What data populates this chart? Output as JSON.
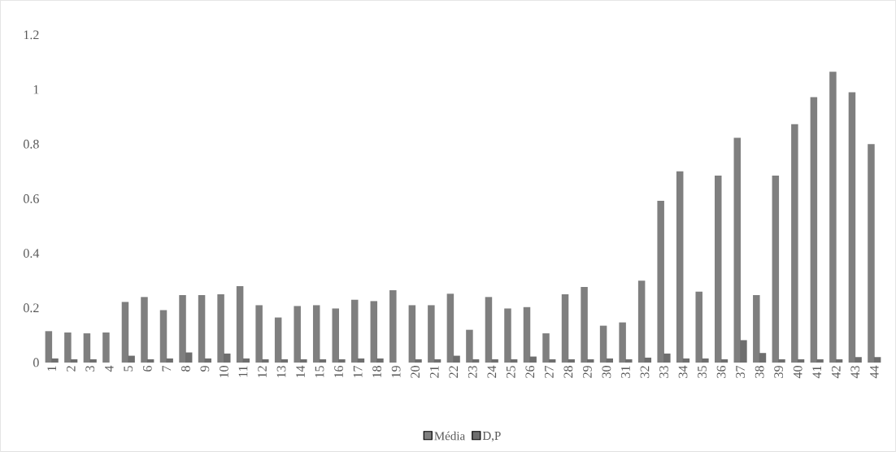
{
  "chart_data": {
    "type": "bar",
    "categories": [
      "1",
      "2",
      "3",
      "4",
      "5",
      "6",
      "7",
      "8",
      "9",
      "10",
      "11",
      "12",
      "13",
      "14",
      "15",
      "16",
      "17",
      "18",
      "19",
      "20",
      "21",
      "22",
      "23",
      "24",
      "25",
      "26",
      "27",
      "28",
      "29",
      "30",
      "31",
      "32",
      "33",
      "34",
      "35",
      "36",
      "37",
      "38",
      "39",
      "40",
      "41",
      "42",
      "43",
      "44"
    ],
    "series": [
      {
        "name": "Média",
        "color": "#7f7f7f",
        "values": [
          0.115,
          0.11,
          0.107,
          0.11,
          0.222,
          0.24,
          0.192,
          0.247,
          0.247,
          0.25,
          0.28,
          0.21,
          0.165,
          0.207,
          0.21,
          0.198,
          0.23,
          0.225,
          0.265,
          0.21,
          0.21,
          0.252,
          0.12,
          0.24,
          0.198,
          0.203,
          0.107,
          0.25,
          0.277,
          0.135,
          0.147,
          0.3,
          0.592,
          0.7,
          0.26,
          0.685,
          0.823,
          0.247,
          0.685,
          0.873,
          0.972,
          1.065,
          0.99,
          0.8
        ]
      },
      {
        "name": "D,P",
        "color": "#6e6e6e",
        "values": [
          0.015,
          0.012,
          0.012,
          0,
          0.025,
          0.012,
          0.015,
          0.037,
          0.015,
          0.033,
          0.015,
          0.012,
          0.012,
          0.012,
          0.012,
          0.012,
          0.015,
          0.015,
          0,
          0.012,
          0.012,
          0.025,
          0.012,
          0.012,
          0.012,
          0.022,
          0.012,
          0.012,
          0.012,
          0.015,
          0.012,
          0.018,
          0.033,
          0.015,
          0.015,
          0.012,
          0.082,
          0.035,
          0.012,
          0.012,
          0.012,
          0.012,
          0.02,
          0.02
        ]
      }
    ],
    "ylim": [
      0,
      1.2
    ],
    "yticks": [
      0,
      0.2,
      0.4,
      0.6,
      0.8,
      1,
      1.2
    ],
    "grid": false,
    "legend": "bottom"
  }
}
